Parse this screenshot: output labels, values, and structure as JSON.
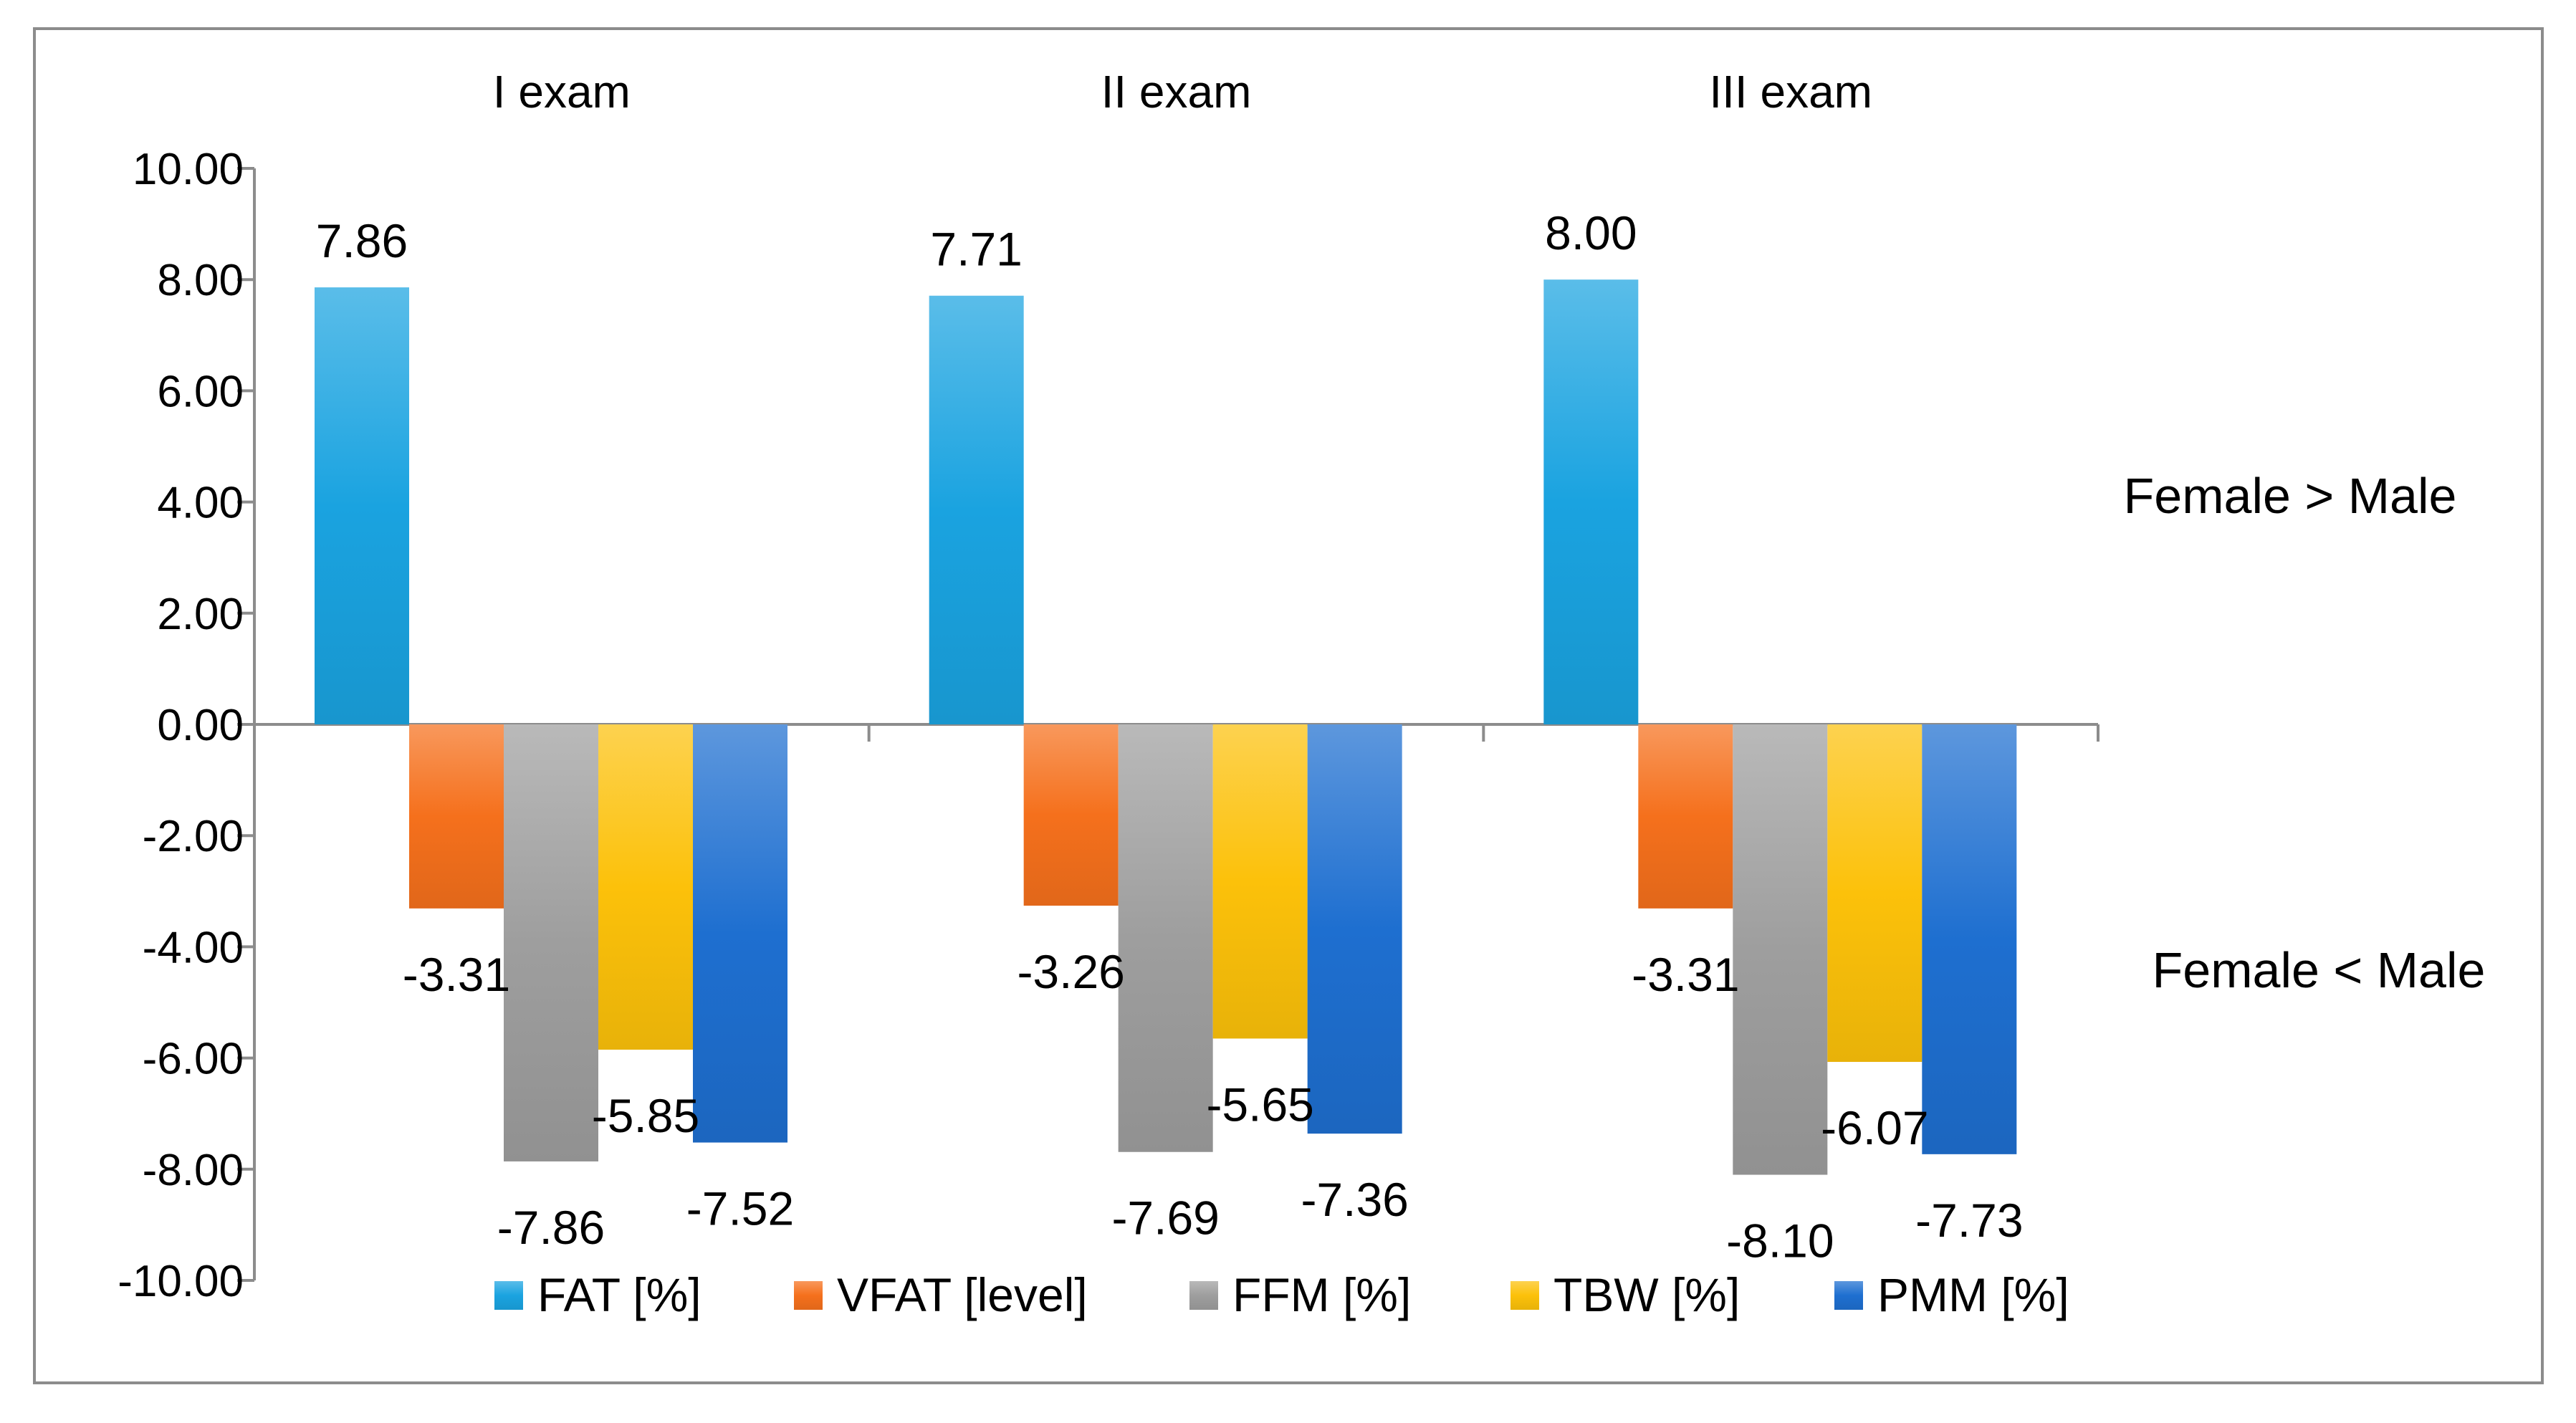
{
  "chart_data": {
    "type": "bar",
    "title": "",
    "xlabel": "",
    "ylabel": "",
    "categories": [
      "I exam",
      "II exam",
      "III exam"
    ],
    "series": [
      {
        "name": "FAT [%]",
        "values": [
          7.86,
          7.71,
          8.0
        ],
        "labels": [
          "7.86",
          "7.71",
          "8.00"
        ],
        "color": "#1aa3e0"
      },
      {
        "name": "VFAT [level]",
        "values": [
          -3.31,
          -3.26,
          -3.31
        ],
        "labels": [
          "-3.31",
          "-3.26",
          "-3.31"
        ],
        "color": "#f5701c"
      },
      {
        "name": "FFM [%]",
        "values": [
          -7.86,
          -7.69,
          -8.1
        ],
        "labels": [
          "-7.86",
          "-7.69",
          "-8.10"
        ],
        "color": "#9e9e9e"
      },
      {
        "name": "TBW [%]",
        "values": [
          -5.85,
          -5.65,
          -6.07
        ],
        "labels": [
          "-5.85",
          "-5.65",
          "-6.07"
        ],
        "color": "#fcc10a"
      },
      {
        "name": "PMM [%]",
        "values": [
          -7.52,
          -7.36,
          -7.73
        ],
        "labels": [
          "-7.52",
          "-7.36",
          "-7.73"
        ],
        "color": "#1e6fd0"
      }
    ],
    "ylim": [
      -10,
      10
    ],
    "yticks": [
      "10.00",
      "8.00",
      "6.00",
      "4.00",
      "2.00",
      "0.00",
      "-2.00",
      "-4.00",
      "-6.00",
      "-8.00",
      "-10.00"
    ],
    "grid": false,
    "legend_position": "bottom",
    "annotations": [
      "Female > Male",
      "Female < Male"
    ]
  }
}
